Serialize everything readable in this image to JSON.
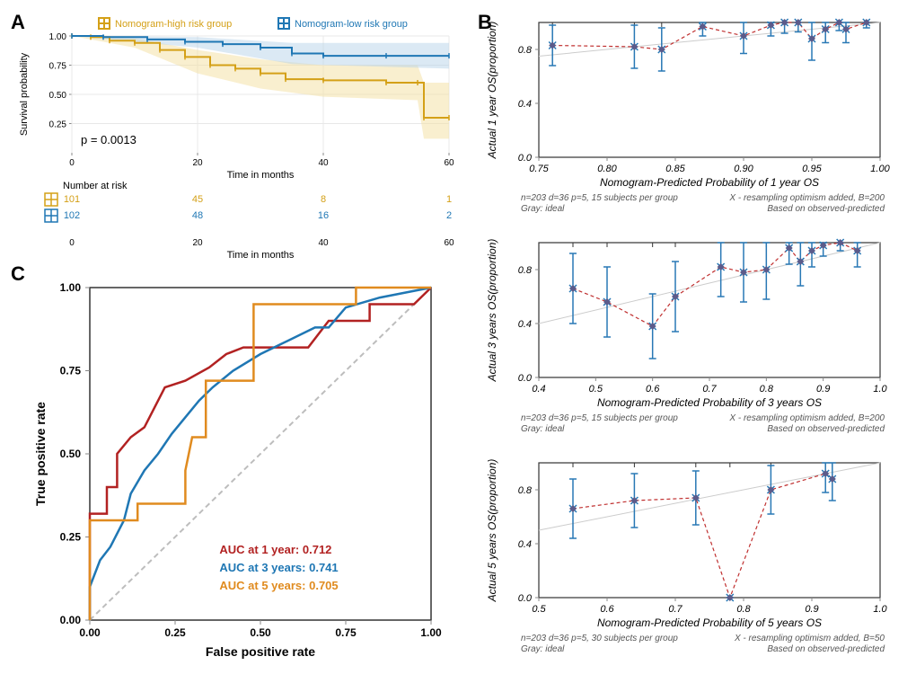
{
  "panelA": {
    "label": "A",
    "legend": {
      "high": {
        "label": "Nomogram-high risk group",
        "color": "#d4a017"
      },
      "low": {
        "label": "Nomogram-low risk group",
        "color": "#1f77b4"
      }
    },
    "km": {
      "xlabel": "Time in months",
      "ylabel": "Survival probability",
      "xlim": [
        0,
        60
      ],
      "ylim": [
        0.0,
        1.0
      ],
      "xticks": [
        0,
        20,
        40,
        60
      ],
      "yticks": [
        0.25,
        0.5,
        0.75,
        1.0
      ],
      "pvalue": "p = 0.0013",
      "high_color": "#d4a017",
      "high_fill": "#f3e0a0",
      "low_color": "#1f77b4",
      "low_fill": "#b8d4ea",
      "high_curve": [
        {
          "t": 0,
          "s": 1.0
        },
        {
          "t": 3,
          "s": 0.99
        },
        {
          "t": 6,
          "s": 0.96
        },
        {
          "t": 10,
          "s": 0.94
        },
        {
          "t": 14,
          "s": 0.88
        },
        {
          "t": 18,
          "s": 0.82
        },
        {
          "t": 22,
          "s": 0.75
        },
        {
          "t": 26,
          "s": 0.72
        },
        {
          "t": 30,
          "s": 0.68
        },
        {
          "t": 34,
          "s": 0.63
        },
        {
          "t": 40,
          "s": 0.62
        },
        {
          "t": 50,
          "s": 0.6
        },
        {
          "t": 55,
          "s": 0.6
        },
        {
          "t": 56,
          "s": 0.3
        },
        {
          "t": 60,
          "s": 0.3
        }
      ],
      "high_upper": [
        {
          "t": 0,
          "s": 1.0
        },
        {
          "t": 10,
          "s": 0.98
        },
        {
          "t": 20,
          "s": 0.88
        },
        {
          "t": 30,
          "s": 0.8
        },
        {
          "t": 40,
          "s": 0.75
        },
        {
          "t": 55,
          "s": 0.75
        },
        {
          "t": 56,
          "s": 0.6
        },
        {
          "t": 60,
          "s": 0.6
        }
      ],
      "high_lower": [
        {
          "t": 0,
          "s": 1.0
        },
        {
          "t": 10,
          "s": 0.9
        },
        {
          "t": 20,
          "s": 0.68
        },
        {
          "t": 30,
          "s": 0.55
        },
        {
          "t": 40,
          "s": 0.48
        },
        {
          "t": 55,
          "s": 0.45
        },
        {
          "t": 56,
          "s": 0.12
        },
        {
          "t": 60,
          "s": 0.12
        }
      ],
      "low_curve": [
        {
          "t": 0,
          "s": 1.0
        },
        {
          "t": 5,
          "s": 0.99
        },
        {
          "t": 12,
          "s": 0.97
        },
        {
          "t": 18,
          "s": 0.95
        },
        {
          "t": 24,
          "s": 0.93
        },
        {
          "t": 30,
          "s": 0.9
        },
        {
          "t": 35,
          "s": 0.85
        },
        {
          "t": 40,
          "s": 0.83
        },
        {
          "t": 50,
          "s": 0.83
        },
        {
          "t": 60,
          "s": 0.83
        }
      ],
      "low_upper": [
        {
          "t": 0,
          "s": 1.0
        },
        {
          "t": 20,
          "s": 0.99
        },
        {
          "t": 35,
          "s": 0.94
        },
        {
          "t": 60,
          "s": 0.94
        }
      ],
      "low_lower": [
        {
          "t": 0,
          "s": 1.0
        },
        {
          "t": 20,
          "s": 0.9
        },
        {
          "t": 35,
          "s": 0.76
        },
        {
          "t": 60,
          "s": 0.72
        }
      ]
    },
    "risk_table": {
      "title": "Number at risk",
      "xlabel": "Time in months",
      "xticks": [
        0,
        20,
        40,
        60
      ],
      "rows": [
        {
          "color": "#d4a017",
          "counts": [
            101,
            45,
            8,
            1
          ]
        },
        {
          "color": "#1f77b4",
          "counts": [
            102,
            48,
            16,
            2
          ]
        }
      ]
    }
  },
  "panelB": {
    "label": "B",
    "calibrations": [
      {
        "ylabel": "Actual 1 year OS(proportion)",
        "xlabel": "Nomogram-Predicted Probability of 1 year OS",
        "caption_left": "n=203 d=36 p=5, 15 subjects per group\nGray: ideal",
        "caption_right": "X - resampling optimism added, B=200\nBased on observed-predicted",
        "xlim": [
          0.75,
          1.0
        ],
        "xticks": [
          0.75,
          0.8,
          0.85,
          0.9,
          0.95,
          1.0
        ],
        "ylim": [
          0.0,
          1.0
        ],
        "yticks": [
          0.0,
          0.4,
          0.8
        ],
        "marker_color": "#5b5b8a",
        "error_color": "#2878b5",
        "line_color": "#c03030",
        "points": [
          {
            "x": 0.76,
            "y": 0.83,
            "lo": 0.68,
            "hi": 0.98
          },
          {
            "x": 0.82,
            "y": 0.82,
            "lo": 0.66,
            "hi": 0.98
          },
          {
            "x": 0.84,
            "y": 0.8,
            "lo": 0.64,
            "hi": 0.96
          },
          {
            "x": 0.87,
            "y": 0.97,
            "lo": 0.9,
            "hi": 1.0
          },
          {
            "x": 0.9,
            "y": 0.9,
            "lo": 0.77,
            "hi": 1.0
          },
          {
            "x": 0.92,
            "y": 0.98,
            "lo": 0.9,
            "hi": 1.0
          },
          {
            "x": 0.93,
            "y": 1.0,
            "lo": 0.92,
            "hi": 1.0
          },
          {
            "x": 0.94,
            "y": 1.0,
            "lo": 0.93,
            "hi": 1.0
          },
          {
            "x": 0.95,
            "y": 0.88,
            "lo": 0.72,
            "hi": 1.0
          },
          {
            "x": 0.96,
            "y": 0.95,
            "lo": 0.85,
            "hi": 1.0
          },
          {
            "x": 0.97,
            "y": 1.0,
            "lo": 0.94,
            "hi": 1.0
          },
          {
            "x": 0.975,
            "y": 0.95,
            "lo": 0.85,
            "hi": 1.0
          },
          {
            "x": 0.99,
            "y": 1.0,
            "lo": 0.96,
            "hi": 1.0
          }
        ]
      },
      {
        "ylabel": "Actual 3 years OS(proportion)",
        "xlabel": "Nomogram-Predicted Probability of 3 years OS",
        "caption_left": "n=203 d=36 p=5, 15 subjects per group\nGray: ideal",
        "caption_right": "X - resampling optimism added, B=200\nBased on observed-predicted",
        "xlim": [
          0.4,
          1.0
        ],
        "xticks": [
          0.4,
          0.5,
          0.6,
          0.7,
          0.8,
          0.9,
          1.0
        ],
        "ylim": [
          0.0,
          1.0
        ],
        "yticks": [
          0.0,
          0.4,
          0.8
        ],
        "marker_color": "#5b5b8a",
        "error_color": "#2878b5",
        "line_color": "#c03030",
        "points": [
          {
            "x": 0.46,
            "y": 0.66,
            "lo": 0.4,
            "hi": 0.92
          },
          {
            "x": 0.52,
            "y": 0.56,
            "lo": 0.3,
            "hi": 0.82
          },
          {
            "x": 0.6,
            "y": 0.38,
            "lo": 0.14,
            "hi": 0.62
          },
          {
            "x": 0.64,
            "y": 0.6,
            "lo": 0.34,
            "hi": 0.86
          },
          {
            "x": 0.72,
            "y": 0.82,
            "lo": 0.6,
            "hi": 1.0
          },
          {
            "x": 0.76,
            "y": 0.78,
            "lo": 0.56,
            "hi": 1.0
          },
          {
            "x": 0.8,
            "y": 0.8,
            "lo": 0.58,
            "hi": 1.0
          },
          {
            "x": 0.84,
            "y": 0.96,
            "lo": 0.84,
            "hi": 1.0
          },
          {
            "x": 0.86,
            "y": 0.86,
            "lo": 0.68,
            "hi": 1.0
          },
          {
            "x": 0.88,
            "y": 0.94,
            "lo": 0.82,
            "hi": 1.0
          },
          {
            "x": 0.9,
            "y": 0.98,
            "lo": 0.9,
            "hi": 1.0
          },
          {
            "x": 0.93,
            "y": 1.0,
            "lo": 0.94,
            "hi": 1.0
          },
          {
            "x": 0.96,
            "y": 0.94,
            "lo": 0.82,
            "hi": 1.0
          }
        ]
      },
      {
        "ylabel": "Actual 5 years OS(proportion)",
        "xlabel": "Nomogram-Predicted Probability of 5 years OS",
        "caption_left": "n=203 d=36 p=5, 30 subjects per group\nGray: ideal",
        "caption_right": "X - resampling optimism added, B=50\nBased on observed-predicted",
        "xlim": [
          0.5,
          1.0
        ],
        "xticks": [
          0.5,
          0.6,
          0.7,
          0.8,
          0.9,
          1.0
        ],
        "ylim": [
          0.0,
          1.0
        ],
        "yticks": [
          0.0,
          0.4,
          0.8
        ],
        "marker_color": "#5b5b8a",
        "error_color": "#2878b5",
        "line_color": "#c03030",
        "points": [
          {
            "x": 0.55,
            "y": 0.66,
            "lo": 0.44,
            "hi": 0.88
          },
          {
            "x": 0.64,
            "y": 0.72,
            "lo": 0.52,
            "hi": 0.92
          },
          {
            "x": 0.73,
            "y": 0.74,
            "lo": 0.54,
            "hi": 0.94
          },
          {
            "x": 0.78,
            "y": 0.0,
            "lo": 0.0,
            "hi": 0.0
          },
          {
            "x": 0.84,
            "y": 0.8,
            "lo": 0.62,
            "hi": 0.98
          },
          {
            "x": 0.92,
            "y": 0.92,
            "lo": 0.78,
            "hi": 1.0
          },
          {
            "x": 0.93,
            "y": 0.88,
            "lo": 0.72,
            "hi": 1.0
          }
        ]
      }
    ]
  },
  "panelC": {
    "label": "C",
    "roc": {
      "xlabel": "False positive rate",
      "ylabel": "True positive rate",
      "xlim": [
        0,
        1
      ],
      "ylim": [
        0,
        1
      ],
      "ticks": [
        0.0,
        0.25,
        0.5,
        0.75,
        1.0
      ],
      "diag_color": "#bdbdbd",
      "legend": [
        {
          "label": "AUC at 1 year:  0.712",
          "color": "#b22222"
        },
        {
          "label": "AUC at 3 years: 0.741",
          "color": "#1f77b4"
        },
        {
          "label": "AUC at 5 years: 0.705",
          "color": "#e08b1f"
        }
      ],
      "curves": {
        "y1": {
          "color": "#b22222",
          "pts": [
            [
              0.0,
              0.0
            ],
            [
              0.0,
              0.32
            ],
            [
              0.05,
              0.32
            ],
            [
              0.05,
              0.4
            ],
            [
              0.08,
              0.4
            ],
            [
              0.08,
              0.5
            ],
            [
              0.12,
              0.55
            ],
            [
              0.16,
              0.58
            ],
            [
              0.22,
              0.7
            ],
            [
              0.28,
              0.72
            ],
            [
              0.35,
              0.76
            ],
            [
              0.4,
              0.8
            ],
            [
              0.45,
              0.82
            ],
            [
              0.64,
              0.82
            ],
            [
              0.7,
              0.9
            ],
            [
              0.82,
              0.9
            ],
            [
              0.82,
              0.95
            ],
            [
              0.95,
              0.95
            ],
            [
              1.0,
              1.0
            ]
          ]
        },
        "y3": {
          "color": "#1f77b4",
          "pts": [
            [
              0.0,
              0.0
            ],
            [
              0.0,
              0.1
            ],
            [
              0.03,
              0.18
            ],
            [
              0.06,
              0.22
            ],
            [
              0.1,
              0.3
            ],
            [
              0.12,
              0.38
            ],
            [
              0.16,
              0.45
            ],
            [
              0.2,
              0.5
            ],
            [
              0.24,
              0.56
            ],
            [
              0.28,
              0.61
            ],
            [
              0.32,
              0.66
            ],
            [
              0.36,
              0.7
            ],
            [
              0.42,
              0.75
            ],
            [
              0.5,
              0.8
            ],
            [
              0.58,
              0.84
            ],
            [
              0.66,
              0.88
            ],
            [
              0.7,
              0.88
            ],
            [
              0.75,
              0.94
            ],
            [
              0.85,
              0.97
            ],
            [
              1.0,
              1.0
            ]
          ]
        },
        "y5": {
          "color": "#e08b1f",
          "pts": [
            [
              0.0,
              0.0
            ],
            [
              0.0,
              0.3
            ],
            [
              0.14,
              0.3
            ],
            [
              0.14,
              0.35
            ],
            [
              0.28,
              0.35
            ],
            [
              0.28,
              0.45
            ],
            [
              0.3,
              0.55
            ],
            [
              0.34,
              0.55
            ],
            [
              0.34,
              0.72
            ],
            [
              0.48,
              0.72
            ],
            [
              0.48,
              0.95
            ],
            [
              0.78,
              0.95
            ],
            [
              0.78,
              1.0
            ],
            [
              1.0,
              1.0
            ]
          ]
        }
      }
    }
  }
}
